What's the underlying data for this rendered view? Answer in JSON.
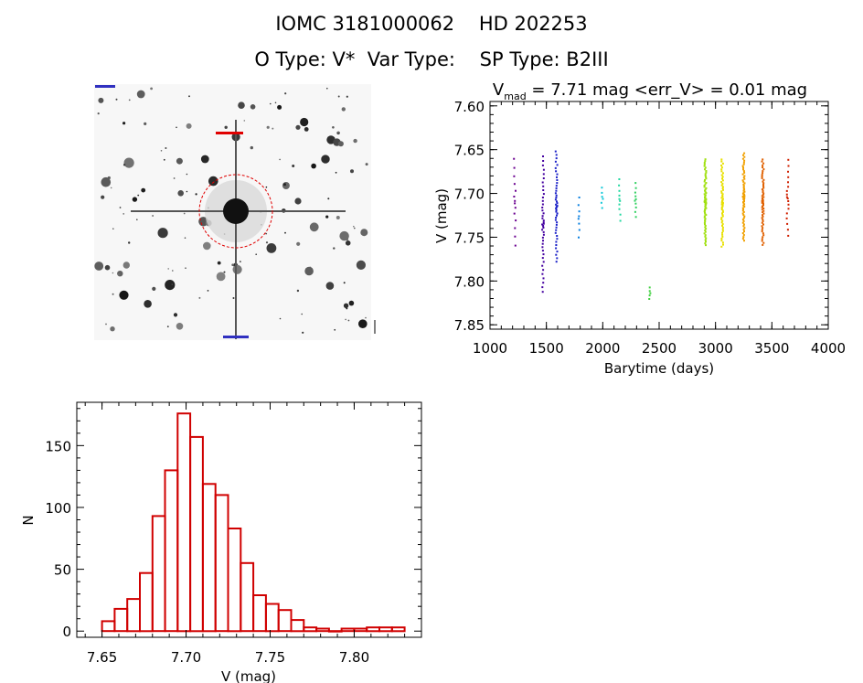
{
  "header": {
    "ids": "IOMC 3181000062    HD 202253",
    "types": "O Type: V*  Var Type:    SP Type: B2III"
  },
  "colors": {
    "ink": "#000000",
    "histogram": "#d00000",
    "finder_marker": "#e00000",
    "finder_label_blue": "#3030c0"
  },
  "chart_data": [
    {
      "type": "image",
      "name": "finder-chart",
      "description_free": true
    },
    {
      "type": "scatter",
      "title_parts": [
        "V",
        "mad",
        " = 7.71 mag <err_V> = 0.01 mag"
      ],
      "xlabel": "Barytime (days)",
      "ylabel": "V (mag)",
      "xlim": [
        1000,
        4000
      ],
      "ylim": [
        7.855,
        7.595
      ],
      "y_inverted": true,
      "xticks": [
        1000,
        1500,
        2000,
        2500,
        3000,
        3500,
        4000
      ],
      "yticks": [
        7.6,
        7.65,
        7.7,
        7.75,
        7.8,
        7.85
      ],
      "ytick_labels": [
        "7.60",
        "7.65",
        "7.70",
        "7.75",
        "7.80",
        "7.85"
      ],
      "colormap": "rainbow by time",
      "groups": [
        {
          "x": 1220,
          "ymin": 7.655,
          "ymax": 7.765,
          "n": 14,
          "color": "#6a0090"
        },
        {
          "x": 1470,
          "ymin": 7.655,
          "ymax": 7.815,
          "n": 42,
          "color": "#4400a0"
        },
        {
          "x": 1590,
          "ymin": 7.65,
          "ymax": 7.78,
          "n": 45,
          "color": "#1a20c8"
        },
        {
          "x": 1790,
          "ymin": 7.7,
          "ymax": 7.755,
          "n": 8,
          "color": "#0a80e0"
        },
        {
          "x": 1995,
          "ymin": 7.69,
          "ymax": 7.72,
          "n": 6,
          "color": "#10c8d8"
        },
        {
          "x": 2150,
          "ymin": 7.68,
          "ymax": 7.735,
          "n": 10,
          "color": "#20d8a0"
        },
        {
          "x": 2290,
          "ymin": 7.685,
          "ymax": 7.73,
          "n": 10,
          "color": "#30d060"
        },
        {
          "x": 2420,
          "ymin": 7.805,
          "ymax": 7.823,
          "n": 5,
          "color": "#40d040"
        },
        {
          "x": 2910,
          "ymin": 7.66,
          "ymax": 7.76,
          "n": 70,
          "color": "#a0e010"
        },
        {
          "x": 3060,
          "ymin": 7.66,
          "ymax": 7.762,
          "n": 60,
          "color": "#e8e000"
        },
        {
          "x": 3250,
          "ymin": 7.653,
          "ymax": 7.755,
          "n": 65,
          "color": "#f0a000"
        },
        {
          "x": 3420,
          "ymin": 7.66,
          "ymax": 7.76,
          "n": 60,
          "color": "#e06000"
        },
        {
          "x": 3640,
          "ymin": 7.658,
          "ymax": 7.752,
          "n": 18,
          "color": "#d02000"
        }
      ]
    },
    {
      "type": "bar",
      "subtype": "histogram",
      "xlabel": "V (mag)",
      "ylabel": "N",
      "xlim": [
        7.635,
        7.84
      ],
      "ylim": [
        -5,
        185
      ],
      "xticks": [
        7.65,
        7.7,
        7.75,
        7.8
      ],
      "xtick_labels": [
        "7.65",
        "7.70",
        "7.75",
        "7.80"
      ],
      "yticks": [
        0,
        50,
        100,
        150
      ],
      "yticks_labels": [
        "0",
        "50",
        "100",
        "150"
      ],
      "bin_start": 7.65,
      "bin_width": 0.0075,
      "values": [
        8,
        18,
        26,
        47,
        93,
        130,
        176,
        157,
        119,
        110,
        83,
        55,
        29,
        22,
        17,
        9,
        3,
        2,
        0,
        2,
        2,
        3,
        3,
        3
      ]
    }
  ]
}
